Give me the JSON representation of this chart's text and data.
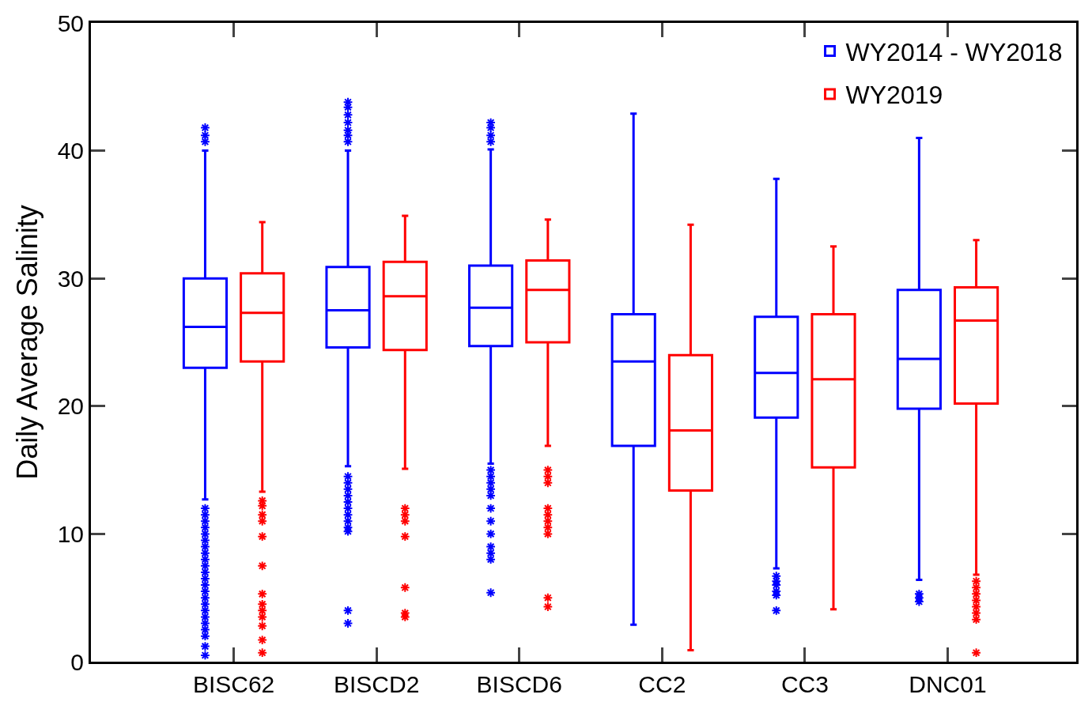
{
  "chart_data": {
    "type": "box",
    "ylabel": "Daily Average Salinity",
    "categories": [
      "BISC62",
      "BISCD2",
      "BISCD6",
      "CC2",
      "CC3",
      "DNC01"
    ],
    "ylim": [
      0,
      50
    ],
    "yticks": [
      0,
      10,
      20,
      30,
      40,
      50
    ],
    "legend": "top right",
    "series": [
      {
        "name": "WY2014 - WY2018",
        "color": "#0000ff",
        "boxes": [
          {
            "low": 12.7,
            "q1": 23.0,
            "median": 26.2,
            "q3": 30.0,
            "high": 40.0,
            "outliers": [
              40.7,
              41.2,
              41.8,
              12.0,
              11.5,
              11.0,
              10.5,
              10.0,
              9.5,
              9.0,
              8.5,
              8.0,
              7.5,
              7.0,
              6.5,
              6.0,
              5.5,
              5.0,
              4.5,
              4.0,
              3.5,
              3.0,
              2.5,
              2.0,
              1.2,
              0.5
            ]
          },
          {
            "low": 15.3,
            "q1": 24.6,
            "median": 27.5,
            "q3": 30.9,
            "high": 40.0,
            "outliers": [
              40.7,
              41.2,
              41.6,
              42.2,
              42.8,
              43.4,
              43.8,
              14.5,
              14.0,
              13.5,
              13.0,
              12.5,
              12.0,
              11.5,
              11.0,
              10.5,
              10.2,
              4.0,
              3.0
            ]
          },
          {
            "low": 15.5,
            "q1": 24.7,
            "median": 27.7,
            "q3": 31.0,
            "high": 40.1,
            "outliers": [
              40.7,
              41.2,
              41.8,
              42.2,
              15.0,
              14.5,
              14.0,
              13.5,
              13.0,
              12.0,
              11.0,
              10.0,
              9.0,
              8.5,
              8.0,
              5.4
            ]
          },
          {
            "low": 2.9,
            "q1": 16.9,
            "median": 23.5,
            "q3": 27.2,
            "high": 42.9
          },
          {
            "low": 7.3,
            "q1": 19.1,
            "median": 22.6,
            "q3": 27.0,
            "high": 37.8,
            "outliers": [
              6.7,
              6.3,
              6.0,
              5.5,
              5.2,
              4.0
            ]
          },
          {
            "low": 6.4,
            "q1": 19.8,
            "median": 23.7,
            "q3": 29.1,
            "high": 41.0,
            "outliers": [
              5.3,
              5.0,
              4.7
            ]
          }
        ]
      },
      {
        "name": "WY2019",
        "color": "#ff0000",
        "boxes": [
          {
            "low": 13.3,
            "q1": 23.5,
            "median": 27.3,
            "q3": 30.4,
            "high": 34.4,
            "outliers": [
              12.6,
              12.2,
              11.5,
              11.0,
              9.8,
              7.5,
              5.3,
              4.5,
              4.0,
              3.5,
              2.8,
              1.7,
              0.7
            ]
          },
          {
            "low": 15.1,
            "q1": 24.4,
            "median": 28.6,
            "q3": 31.3,
            "high": 34.9,
            "outliers": [
              12.0,
              11.5,
              11.0,
              9.8,
              5.8,
              3.8,
              3.5
            ]
          },
          {
            "low": 16.9,
            "q1": 25.0,
            "median": 29.1,
            "q3": 31.4,
            "high": 34.6,
            "outliers": [
              15.0,
              14.5,
              14.0,
              12.0,
              11.5,
              11.0,
              10.5,
              10.0,
              5.0,
              4.3
            ]
          },
          {
            "low": 0.9,
            "q1": 13.4,
            "median": 18.1,
            "q3": 24.0,
            "high": 34.2
          },
          {
            "low": 4.1,
            "q1": 15.2,
            "median": 22.1,
            "q3": 27.2,
            "high": 32.5
          },
          {
            "low": 6.8,
            "q1": 20.2,
            "median": 26.7,
            "q3": 29.3,
            "high": 33.0,
            "outliers": [
              6.3,
              5.8,
              5.3,
              4.8,
              4.3,
              3.8,
              3.3,
              0.7
            ]
          }
        ]
      }
    ]
  }
}
